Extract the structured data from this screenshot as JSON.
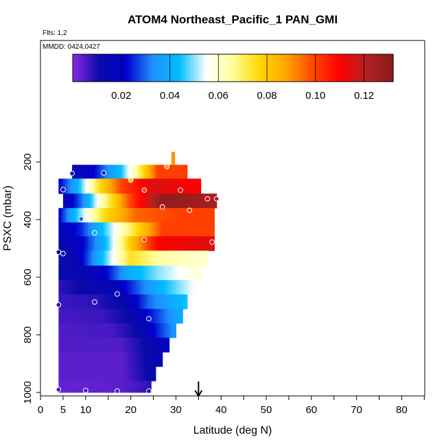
{
  "chart_data": {
    "type": "heatmap",
    "title": "ATOM4 Northeast_Pacific_1 PAN_GMI",
    "flights_label": "Flts: 1,2",
    "dates_label": "MMDD: 0424,0427",
    "xlabel": "Latitude (deg N)",
    "ylabel": "PSXC (mbar)",
    "xlim": [
      0,
      85
    ],
    "ylim": [
      1000,
      0
    ],
    "x_ticks": [
      0,
      5,
      10,
      20,
      30,
      40,
      50,
      60,
      70,
      80
    ],
    "y_ticks": [
      200,
      400,
      600,
      800,
      1000
    ],
    "colorbar": {
      "min": 0.0,
      "max": 0.132,
      "tick_values": [
        0.02,
        0.04,
        0.06,
        0.08,
        0.1,
        0.12
      ],
      "tick_labels": [
        "0.02",
        "0.04",
        "0.06",
        "0.08",
        "0.10",
        "0.12"
      ],
      "colors": [
        "#8a2be2",
        "#0a0aa8",
        "#0000cd",
        "#1e90ff",
        "#00bfff",
        "#ffffff",
        "#ffff99",
        "#ffd700",
        "#ffa500",
        "#ff4500",
        "#ff0000",
        "#b22222",
        "#8b1a1a"
      ]
    },
    "layers": [
      {
        "p_top": 210,
        "p_bot": 258,
        "knots": [
          [
            7,
            0.012
          ],
          [
            12,
            0.022
          ],
          [
            18,
            0.045
          ],
          [
            22,
            0.07
          ],
          [
            26,
            0.1
          ],
          [
            32.5,
            0.1
          ]
        ]
      },
      {
        "p_top": 258,
        "p_bot": 310,
        "knots": [
          [
            4,
            0.02
          ],
          [
            8,
            0.04
          ],
          [
            13,
            0.075
          ],
          [
            18,
            0.1
          ],
          [
            25,
            0.115
          ],
          [
            35.5,
            0.11
          ]
        ]
      },
      {
        "p_top": 310,
        "p_bot": 360,
        "knots": [
          [
            5,
            0.012
          ],
          [
            9,
            0.03
          ],
          [
            14,
            0.065
          ],
          [
            20,
            0.1
          ],
          [
            27,
            0.13
          ],
          [
            39,
            0.125
          ]
        ]
      },
      {
        "p_top": 360,
        "p_bot": 410,
        "knots": [
          [
            4,
            0.02
          ],
          [
            8,
            0.045
          ],
          [
            14,
            0.075
          ],
          [
            21,
            0.095
          ],
          [
            30,
            0.1
          ],
          [
            38.5,
            0.1
          ]
        ]
      },
      {
        "p_top": 410,
        "p_bot": 458,
        "knots": [
          [
            4,
            0.015
          ],
          [
            9,
            0.025
          ],
          [
            14,
            0.045
          ],
          [
            20,
            0.07
          ],
          [
            27,
            0.1
          ],
          [
            38.5,
            0.1
          ]
        ]
      },
      {
        "p_top": 458,
        "p_bot": 508,
        "knots": [
          [
            4,
            0.012
          ],
          [
            9,
            0.02
          ],
          [
            14,
            0.04
          ],
          [
            20,
            0.08
          ],
          [
            26,
            0.11
          ],
          [
            38.5,
            0.115
          ]
        ]
      },
      {
        "p_top": 508,
        "p_bot": 560,
        "knots": [
          [
            4,
            0.01
          ],
          [
            8,
            0.015
          ],
          [
            14,
            0.045
          ],
          [
            20,
            0.075
          ],
          [
            26,
            0.065
          ],
          [
            37,
            0.06
          ]
        ]
      },
      {
        "p_top": 560,
        "p_bot": 610,
        "knots": [
          [
            4,
            0.012
          ],
          [
            9,
            0.013
          ],
          [
            14,
            0.02
          ],
          [
            20,
            0.04
          ],
          [
            26,
            0.05
          ],
          [
            35.5,
            0.06
          ]
        ]
      },
      {
        "p_top": 610,
        "p_bot": 660,
        "knots": [
          [
            4,
            0.008
          ],
          [
            10,
            0.012
          ],
          [
            16,
            0.015
          ],
          [
            22,
            0.03
          ],
          [
            28,
            0.045
          ],
          [
            34,
            0.055
          ]
        ]
      },
      {
        "p_top": 660,
        "p_bot": 710,
        "knots": [
          [
            4,
            0.007
          ],
          [
            12,
            0.008
          ],
          [
            18,
            0.012
          ],
          [
            24,
            0.03
          ],
          [
            32.5,
            0.045
          ]
        ]
      },
      {
        "p_top": 710,
        "p_bot": 760,
        "knots": [
          [
            4,
            0.006
          ],
          [
            14,
            0.007
          ],
          [
            20,
            0.012
          ],
          [
            25,
            0.025
          ],
          [
            31.5,
            0.04
          ]
        ]
      },
      {
        "p_top": 760,
        "p_bot": 810,
        "knots": [
          [
            4,
            0.005
          ],
          [
            16,
            0.006
          ],
          [
            22,
            0.012
          ],
          [
            26,
            0.025
          ],
          [
            30,
            0.035
          ]
        ]
      },
      {
        "p_top": 810,
        "p_bot": 860,
        "knots": [
          [
            4,
            0.005
          ],
          [
            18,
            0.005
          ],
          [
            24,
            0.012
          ],
          [
            28.5,
            0.02
          ]
        ]
      },
      {
        "p_top": 860,
        "p_bot": 910,
        "knots": [
          [
            4,
            0.004
          ],
          [
            18,
            0.004
          ],
          [
            24,
            0.012
          ],
          [
            27,
            0.015
          ]
        ]
      },
      {
        "p_top": 910,
        "p_bot": 960,
        "knots": [
          [
            4,
            0.004
          ],
          [
            18,
            0.004
          ],
          [
            23,
            0.01
          ],
          [
            25.5,
            0.015
          ]
        ]
      },
      {
        "p_top": 960,
        "p_bot": 1000,
        "knots": [
          [
            4,
            0.003
          ],
          [
            18,
            0.004
          ],
          [
            24.5,
            0.008
          ]
        ]
      }
    ],
    "spike": {
      "x0": 29,
      "x1": 29.8,
      "p_top": 165,
      "p_bot": 210,
      "value": 0.09
    },
    "observations": [
      [
        7,
        240,
        0.02
      ],
      [
        14,
        238,
        0.025
      ],
      [
        20,
        263,
        0.08
      ],
      [
        28,
        216,
        0.09
      ],
      [
        5,
        296,
        0.02
      ],
      [
        23,
        298,
        0.1
      ],
      [
        31,
        298,
        0.11
      ],
      [
        37,
        328,
        0.115
      ],
      [
        39,
        328,
        0.12
      ],
      [
        27,
        356,
        0.12
      ],
      [
        33,
        368,
        0.1
      ],
      [
        9,
        398,
        0.03
      ],
      [
        12,
        446,
        0.04
      ],
      [
        23,
        470,
        0.1
      ],
      [
        38,
        478,
        0.11
      ],
      [
        4,
        513,
        0.015
      ],
      [
        5,
        518,
        0.015
      ],
      [
        4,
        696,
        0.008
      ],
      [
        12,
        686,
        0.008
      ],
      [
        17,
        658,
        0.012
      ],
      [
        24,
        744,
        0.02
      ],
      [
        4,
        990,
        0.005
      ],
      [
        10,
        993,
        0.005
      ],
      [
        17,
        995,
        0.005
      ],
      [
        24,
        995,
        0.01
      ]
    ],
    "marker": {
      "x": 35,
      "label": ""
    }
  }
}
